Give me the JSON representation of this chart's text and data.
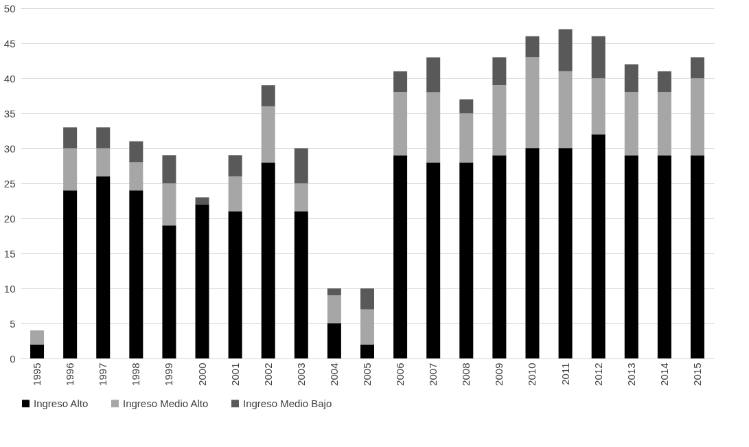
{
  "chart_data": {
    "type": "bar",
    "stacked": true,
    "categories": [
      "1995",
      "1996",
      "1997",
      "1998",
      "1999",
      "2000",
      "2001",
      "2002",
      "2003",
      "2004",
      "2005",
      "2006",
      "2007",
      "2008",
      "2009",
      "2010",
      "2011",
      "2012",
      "2013",
      "2014",
      "2015"
    ],
    "series": [
      {
        "name": "Ingreso Alto",
        "color": "#000000",
        "values": [
          2,
          24,
          26,
          24,
          19,
          22,
          21,
          28,
          21,
          5,
          2,
          29,
          28,
          28,
          29,
          30,
          30,
          32,
          29,
          29,
          29
        ]
      },
      {
        "name": "Ingreso Medio Alto",
        "color": "#a6a6a6",
        "values": [
          2,
          6,
          4,
          4,
          6,
          0,
          5,
          8,
          4,
          4,
          5,
          9,
          10,
          7,
          10,
          13,
          11,
          8,
          9,
          9,
          11
        ]
      },
      {
        "name": "Ingreso Medio Bajo",
        "color": "#595959",
        "values": [
          0,
          3,
          3,
          3,
          4,
          1,
          3,
          3,
          5,
          1,
          3,
          3,
          5,
          2,
          4,
          3,
          6,
          6,
          4,
          3,
          3
        ]
      }
    ],
    "ylim": [
      0,
      50
    ],
    "yticks": [
      0,
      5,
      10,
      15,
      20,
      25,
      30,
      35,
      40,
      45,
      50
    ],
    "grid": "y",
    "legend": "bottom"
  }
}
